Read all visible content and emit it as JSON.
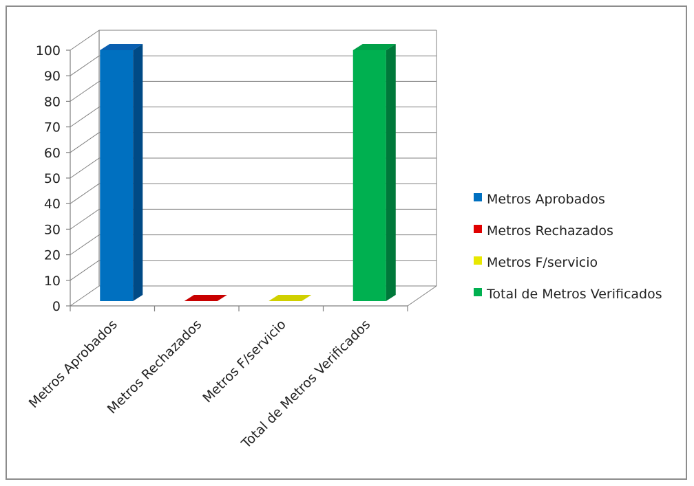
{
  "chart_data": {
    "type": "bar",
    "categories": [
      "Metros  Aprobados",
      "Metros  Rechazados",
      "Metros F/servicio",
      "Total de Metros Verificados"
    ],
    "values": [
      100,
      0,
      0,
      100
    ],
    "ylim": [
      0,
      100
    ],
    "yticks": [
      0,
      10,
      20,
      30,
      40,
      50,
      60,
      70,
      80,
      90,
      100
    ],
    "grid": true,
    "legend_position": "right",
    "colors": [
      "#0070c0",
      "#e00000",
      "#e8e800",
      "#00b050"
    ],
    "side_colors": [
      "#004a86",
      "#a00000",
      "#b0b000",
      "#00783a"
    ],
    "top_colors": [
      "#0a5fb0",
      "#c80000",
      "#d0d000",
      "#00a048"
    ]
  }
}
